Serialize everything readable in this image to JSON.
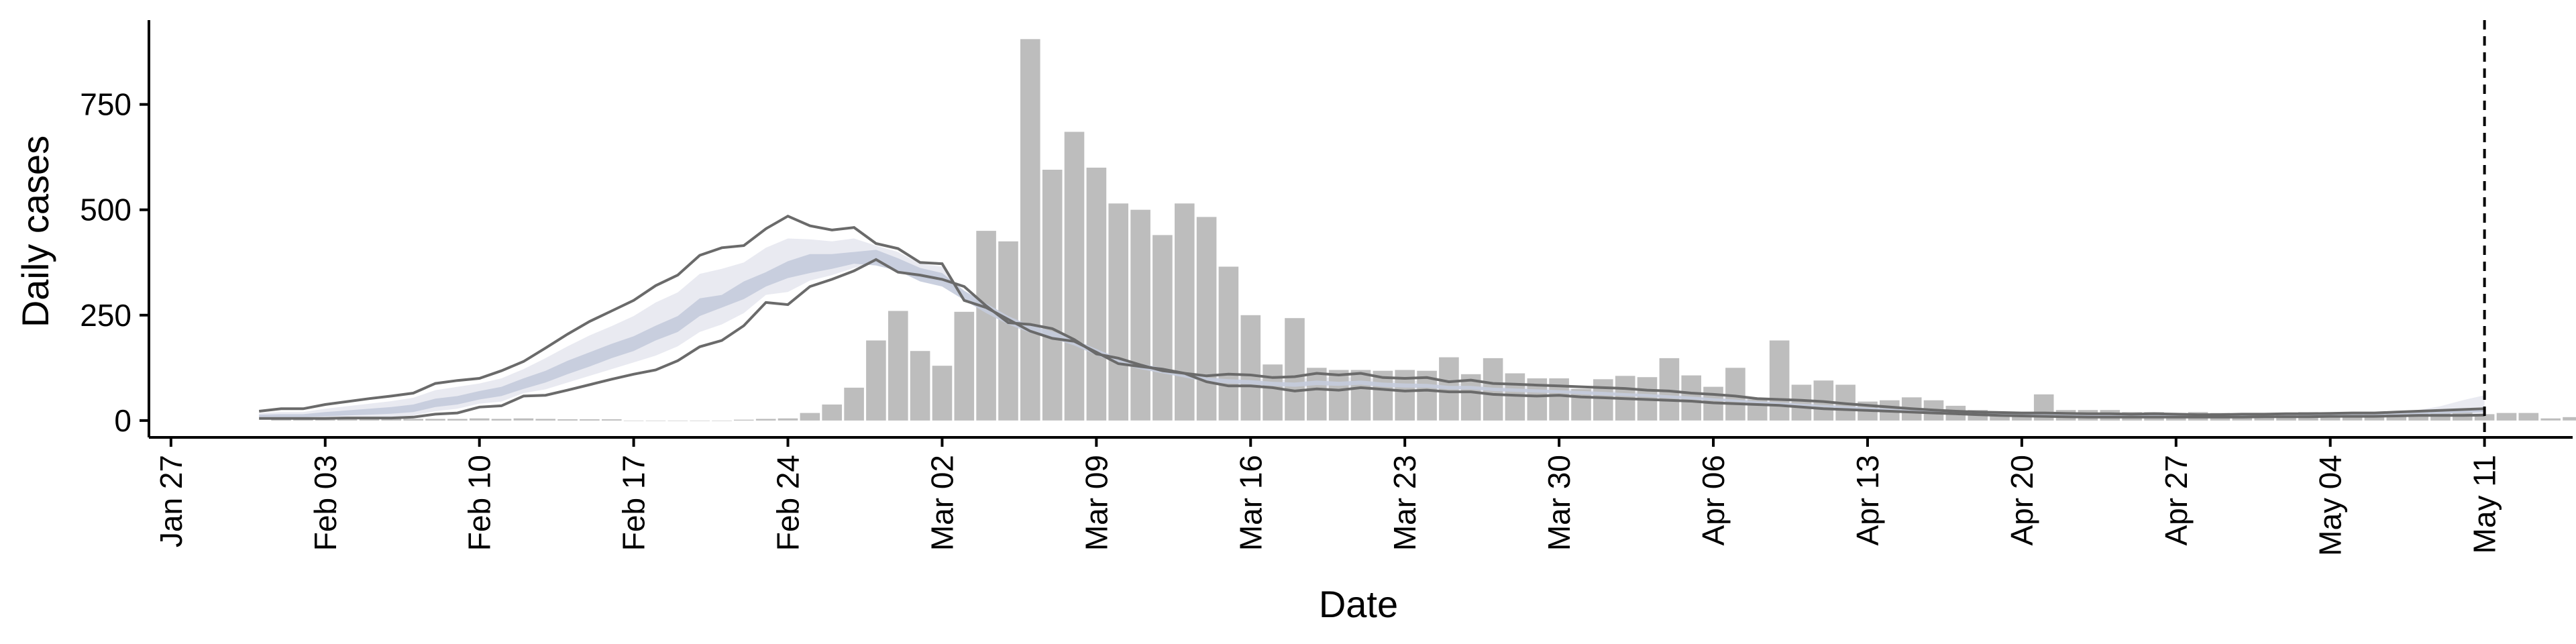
{
  "chart_data": {
    "type": "bar",
    "title": "",
    "xlabel": "Date",
    "ylabel": "Daily cases",
    "x_type": "date",
    "xlim": [
      "2020-01-26",
      "2020-05-15"
    ],
    "ylim": [
      -40,
      950
    ],
    "x_ticks": [
      "2020-01-27",
      "2020-02-03",
      "2020-02-10",
      "2020-02-17",
      "2020-02-24",
      "2020-03-02",
      "2020-03-09",
      "2020-03-16",
      "2020-03-23",
      "2020-03-30",
      "2020-04-06",
      "2020-04-13",
      "2020-04-20",
      "2020-04-27",
      "2020-05-04",
      "2020-05-11"
    ],
    "x_tick_labels": [
      "Jan 27",
      "Feb 03",
      "Feb 10",
      "Feb 17",
      "Feb 24",
      "Mar 02",
      "Mar 09",
      "Mar 16",
      "Mar 23",
      "Mar 30",
      "Apr 06",
      "Apr 13",
      "Apr 20",
      "Apr 27",
      "May 04",
      "May 11"
    ],
    "y_ticks": [
      0,
      250,
      500,
      750
    ],
    "y_tick_labels": [
      "0",
      "250",
      "500",
      "750"
    ],
    "grid": false,
    "legend": "none",
    "vline": {
      "x": "2020-05-11",
      "style": "dashed"
    },
    "colors": {
      "bars": "#bdbdbd",
      "band_inner": "#c4cbdc",
      "band_outer": "#e9eaf1",
      "lines": "#6a6a6a",
      "axis": "#000000"
    },
    "bars": {
      "start": "2020-02-01",
      "values": [
        2,
        2,
        2,
        3,
        3,
        4,
        4,
        4,
        4,
        5,
        4,
        5,
        4,
        3,
        3,
        3,
        0,
        0,
        0,
        0,
        0,
        2,
        4,
        5,
        18,
        38,
        78,
        190,
        260,
        165,
        130,
        258,
        450,
        425,
        905,
        595,
        685,
        600,
        515,
        500,
        440,
        515,
        483,
        365,
        250,
        133,
        243,
        125,
        120,
        120,
        118,
        120,
        118,
        150,
        110,
        148,
        112,
        100,
        100,
        75,
        98,
        106,
        103,
        148,
        107,
        80,
        125,
        50,
        190,
        85,
        95,
        85,
        45,
        48,
        55,
        48,
        35,
        25,
        20,
        18,
        62,
        25,
        25,
        25,
        20,
        20,
        18,
        20,
        18,
        12,
        15,
        18,
        20,
        12,
        15,
        15,
        15,
        20,
        20,
        20,
        15,
        18,
        18,
        5,
        8,
        8,
        15,
        25,
        35,
        40
      ]
    },
    "estimate": {
      "start": "2020-01-31",
      "upper_line": [
        22,
        28,
        28,
        38,
        45,
        52,
        58,
        65,
        88,
        95,
        100,
        118,
        140,
        172,
        205,
        235,
        260,
        285,
        320,
        345,
        392,
        410,
        415,
        455,
        485,
        462,
        452,
        458,
        420,
        408,
        375,
        372,
        285,
        268,
        240,
        212,
        195,
        188,
        162,
        135,
        128,
        122,
        112,
        106,
        110,
        108,
        102,
        104,
        112,
        108,
        112,
        102,
        100,
        102,
        92,
        96,
        88,
        86,
        84,
        82,
        80,
        78,
        76,
        72,
        70,
        65,
        62,
        58,
        52,
        50,
        48,
        45,
        40,
        36,
        32,
        28,
        25,
        22,
        20,
        19,
        18,
        18,
        17,
        16,
        16,
        15,
        16,
        15,
        14,
        14,
        15,
        15,
        16,
        16,
        17,
        18,
        18,
        20,
        22,
        24,
        26,
        28
      ],
      "lower_line": [
        5,
        5,
        5,
        5,
        6,
        6,
        6,
        8,
        15,
        18,
        32,
        35,
        58,
        60,
        72,
        85,
        98,
        110,
        120,
        142,
        175,
        190,
        225,
        280,
        275,
        318,
        335,
        355,
        382,
        352,
        345,
        335,
        318,
        272,
        232,
        228,
        218,
        192,
        158,
        148,
        132,
        118,
        112,
        92,
        82,
        82,
        78,
        70,
        75,
        72,
        78,
        74,
        70,
        72,
        68,
        68,
        62,
        60,
        58,
        60,
        56,
        54,
        52,
        50,
        48,
        46,
        42,
        40,
        38,
        36,
        32,
        28,
        26,
        24,
        22,
        20,
        18,
        16,
        14,
        12,
        11,
        10,
        9,
        8,
        8,
        8,
        8,
        8,
        8,
        8,
        8,
        9,
        9,
        9,
        10,
        10,
        10,
        11,
        12,
        12,
        12,
        13
      ],
      "band_inner_high": [
        14,
        15,
        15,
        20,
        24,
        28,
        32,
        38,
        52,
        58,
        70,
        80,
        100,
        118,
        142,
        162,
        182,
        200,
        225,
        248,
        290,
        298,
        330,
        352,
        378,
        395,
        395,
        400,
        405,
        385,
        362,
        350,
        308,
        278,
        248,
        226,
        212,
        192,
        170,
        148,
        135,
        125,
        115,
        102,
        98,
        96,
        92,
        90,
        95,
        92,
        95,
        90,
        88,
        87,
        82,
        82,
        78,
        76,
        74,
        72,
        70,
        68,
        65,
        63,
        60,
        57,
        53,
        50,
        46,
        43,
        40,
        37,
        34,
        31,
        28,
        25,
        22,
        20,
        18,
        17,
        16,
        16,
        15,
        14,
        14,
        14,
        14,
        14,
        13,
        13,
        14,
        14,
        15,
        15,
        16,
        17,
        17,
        18,
        20,
        22,
        26,
        30
      ],
      "band_inner_low": [
        8,
        8,
        8,
        10,
        12,
        14,
        16,
        20,
        32,
        38,
        50,
        58,
        75,
        90,
        110,
        128,
        148,
        165,
        190,
        210,
        248,
        268,
        288,
        318,
        338,
        350,
        360,
        372,
        368,
        355,
        330,
        318,
        286,
        255,
        228,
        208,
        195,
        178,
        155,
        135,
        122,
        112,
        102,
        92,
        88,
        86,
        82,
        80,
        84,
        82,
        85,
        80,
        78,
        78,
        74,
        74,
        70,
        68,
        66,
        65,
        62,
        60,
        58,
        56,
        53,
        50,
        47,
        44,
        41,
        38,
        35,
        32,
        29,
        27,
        24,
        22,
        19,
        17,
        15,
        14,
        13,
        13,
        12,
        11,
        11,
        11,
        11,
        11,
        11,
        11,
        11,
        12,
        12,
        12,
        13,
        13,
        13,
        14,
        15,
        16,
        18,
        20
      ],
      "band_outer_high": [
        18,
        20,
        20,
        28,
        34,
        40,
        46,
        54,
        72,
        80,
        88,
        100,
        122,
        148,
        176,
        202,
        224,
        248,
        280,
        304,
        348,
        360,
        375,
        410,
        432,
        430,
        425,
        432,
        415,
        400,
        372,
        365,
        298,
        275,
        245,
        220,
        205,
        190,
        166,
        142,
        132,
        124,
        113,
        104,
        104,
        102,
        97,
        97,
        104,
        100,
        104,
        96,
        94,
        95,
        87,
        89,
        83,
        81,
        79,
        77,
        75,
        73,
        70,
        67,
        65,
        61,
        57,
        54,
        49,
        47,
        44,
        41,
        37,
        33,
        30,
        26,
        23,
        21,
        19,
        18,
        17,
        17,
        16,
        15,
        15,
        15,
        15,
        14,
        14,
        14,
        15,
        15,
        16,
        16,
        17,
        18,
        18,
        20,
        25,
        34,
        48,
        60
      ],
      "band_outer_low": [
        5,
        5,
        5,
        6,
        7,
        8,
        9,
        12,
        22,
        28,
        40,
        45,
        65,
        74,
        90,
        106,
        122,
        138,
        154,
        176,
        210,
        228,
        255,
        298,
        305,
        332,
        345,
        362,
        375,
        352,
        338,
        328,
        300,
        262,
        230,
        216,
        206,
        185,
        157,
        141,
        127,
        115,
        107,
        92,
        85,
        84,
        80,
        75,
        80,
        77,
        82,
        77,
        74,
        75,
        71,
        71,
        66,
        64,
        62,
        62,
        59,
        57,
        55,
        53,
        50,
        48,
        44,
        42,
        39,
        37,
        33,
        30,
        27,
        25,
        23,
        21,
        18,
        16,
        14,
        13,
        12,
        11,
        10,
        9,
        9,
        9,
        9,
        9,
        9,
        9,
        9,
        10,
        10,
        10,
        11,
        11,
        11,
        12,
        13,
        13,
        13,
        14
      ]
    }
  }
}
